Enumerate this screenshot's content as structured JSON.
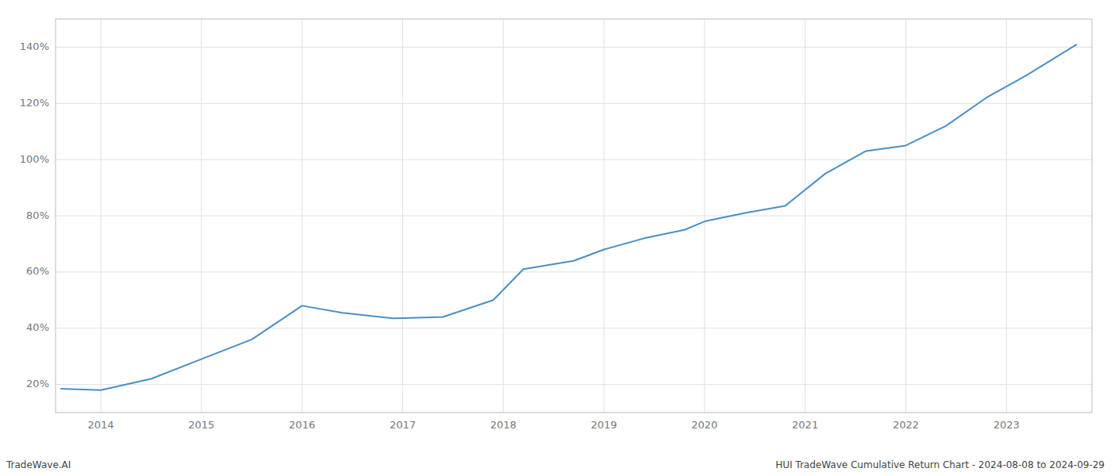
{
  "chart_data": {
    "type": "line",
    "title": "HUI TradeWave Cumulative Return Chart - 2024-08-08 to 2024-09-29",
    "annotations": [
      "TradeWave.AI"
    ],
    "x": [
      2013.6,
      2014.0,
      2014.5,
      2015.0,
      2015.5,
      2016.0,
      2016.4,
      2016.9,
      2017.4,
      2017.9,
      2018.2,
      2018.7,
      2019.0,
      2019.4,
      2019.8,
      2020.0,
      2020.4,
      2020.8,
      2021.2,
      2021.6,
      2022.0,
      2022.4,
      2022.8,
      2023.2,
      2023.7
    ],
    "values": [
      18.5,
      18.0,
      22.0,
      29.0,
      36.0,
      48.0,
      45.5,
      43.5,
      44.0,
      50.0,
      61.0,
      64.0,
      68.0,
      72.0,
      75.0,
      78.0,
      81.0,
      83.5,
      95.0,
      103.0,
      105.0,
      112.0,
      122.0,
      130.0,
      141.0
    ],
    "color": "#4a90c4",
    "xlim": [
      2013.55,
      2023.85
    ],
    "xticks": [
      2014,
      2015,
      2016,
      2017,
      2018,
      2019,
      2020,
      2021,
      2022,
      2023
    ],
    "ylim": [
      10,
      150
    ],
    "yticks": [
      {
        "value": 20,
        "label": "20%"
      },
      {
        "value": 40,
        "label": "40%"
      },
      {
        "value": 60,
        "label": "60%"
      },
      {
        "value": 80,
        "label": "80%"
      },
      {
        "value": 100,
        "label": "100%"
      },
      {
        "value": 120,
        "label": "120%"
      },
      {
        "value": 140,
        "label": "140%"
      }
    ],
    "grid": true
  }
}
